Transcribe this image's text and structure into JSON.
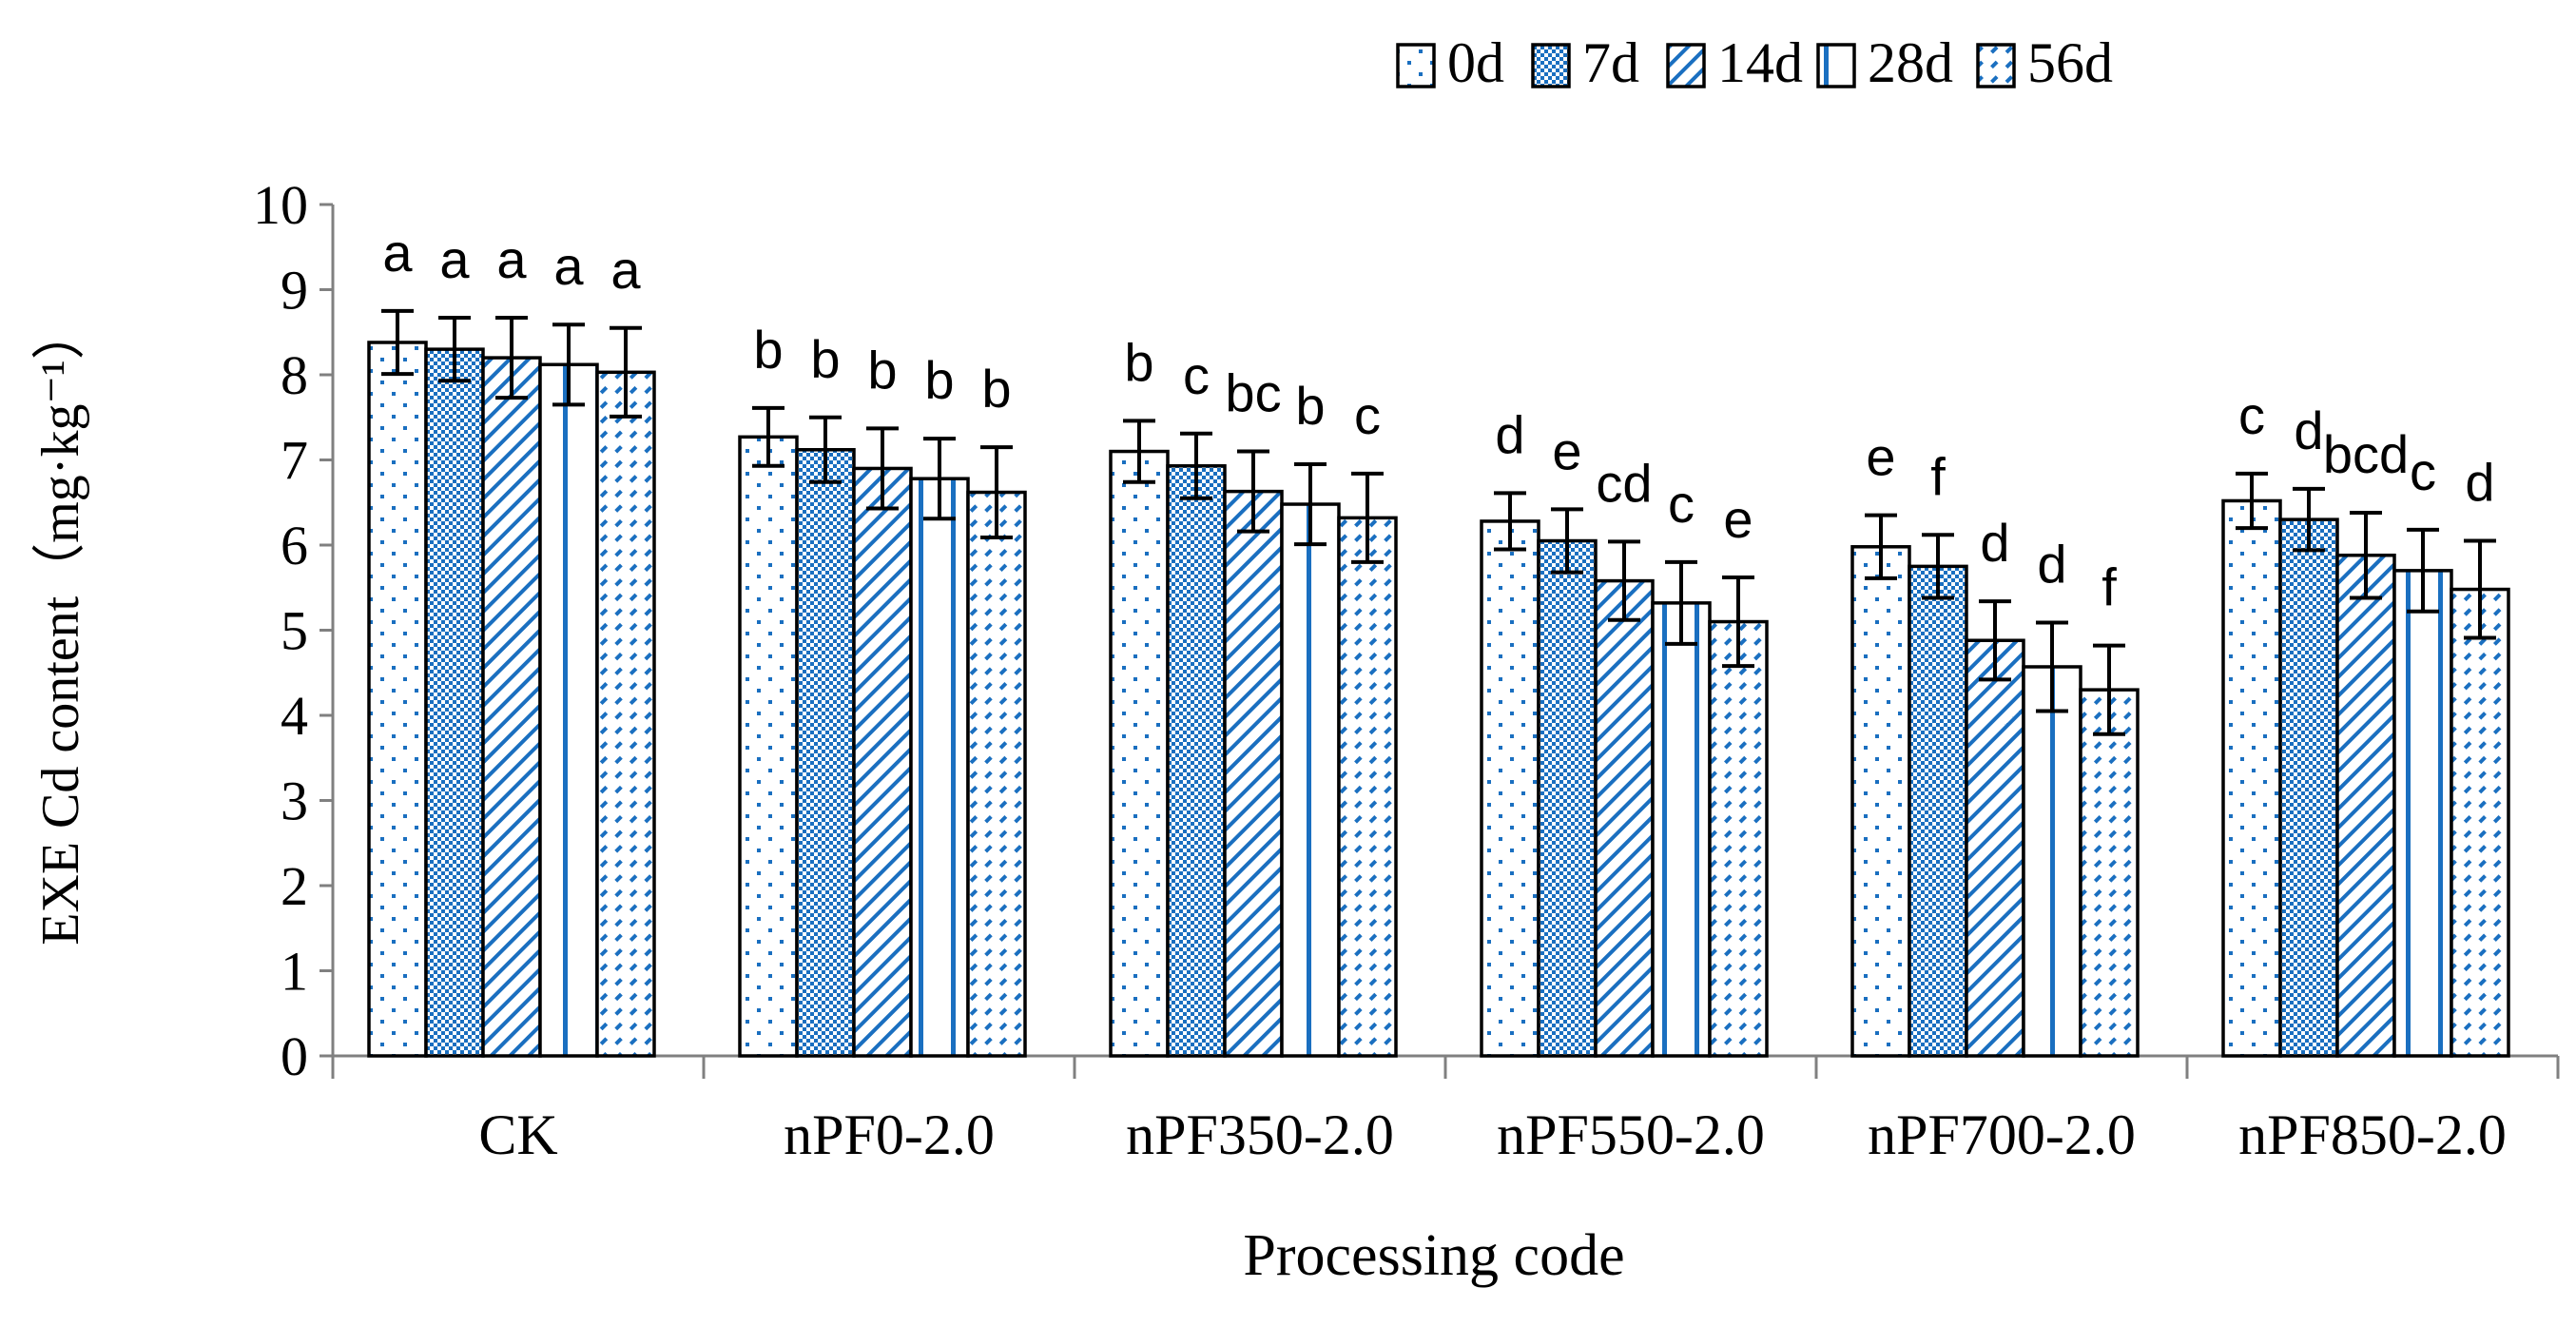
{
  "colors": {
    "accent": "#1a6fc0",
    "frame": "#000000",
    "axis": "#808080",
    "background": "#ffffff"
  },
  "chart_data": {
    "type": "bar",
    "title": "",
    "xlabel": "Processing code",
    "ylabel": "EXE Cd content（mg·kg⁻¹）",
    "ylim": [
      0,
      10
    ],
    "yticks": [
      "0",
      "1",
      "2",
      "3",
      "4",
      "5",
      "6",
      "7",
      "8",
      "9",
      "10"
    ],
    "categories": [
      "CK",
      "nPF0-2.0",
      "nPF350-2.0",
      "nPF550-2.0",
      "nPF700-2.0",
      "nPF850-2.0"
    ],
    "legend_position": "top-right",
    "series": [
      {
        "name": "0d",
        "pattern": "dots",
        "values": [
          8.38,
          7.27,
          7.1,
          6.28,
          5.98,
          6.52
        ],
        "errors": [
          0.37,
          0.34,
          0.36,
          0.33,
          0.37,
          0.32
        ],
        "letters": [
          "a",
          "b",
          "b",
          "d",
          "e",
          "c"
        ]
      },
      {
        "name": "7d",
        "pattern": "checker",
        "values": [
          8.3,
          7.12,
          6.93,
          6.05,
          5.75,
          6.3
        ],
        "errors": [
          0.37,
          0.38,
          0.38,
          0.37,
          0.37,
          0.36
        ],
        "letters": [
          "a",
          "b",
          "c",
          "e",
          "f",
          "d"
        ]
      },
      {
        "name": "14d",
        "pattern": "diagonal",
        "values": [
          8.2,
          6.9,
          6.63,
          5.58,
          4.88,
          5.88
        ],
        "errors": [
          0.47,
          0.47,
          0.47,
          0.46,
          0.46,
          0.5
        ],
        "letters": [
          "a",
          "b",
          "bc",
          "cd",
          "d",
          "bcd"
        ]
      },
      {
        "name": "28d",
        "pattern": "vertical",
        "values": [
          8.12,
          6.78,
          6.48,
          5.32,
          4.57,
          5.7
        ],
        "errors": [
          0.47,
          0.47,
          0.47,
          0.48,
          0.52,
          0.48
        ],
        "letters": [
          "a",
          "b",
          "b",
          "c",
          "d",
          "c"
        ]
      },
      {
        "name": "56d",
        "pattern": "dashdiag",
        "values": [
          8.03,
          6.62,
          6.32,
          5.1,
          4.3,
          5.48
        ],
        "errors": [
          0.52,
          0.53,
          0.52,
          0.52,
          0.52,
          0.57
        ],
        "letters": [
          "a",
          "b",
          "c",
          "e",
          "f",
          "d"
        ]
      }
    ]
  }
}
